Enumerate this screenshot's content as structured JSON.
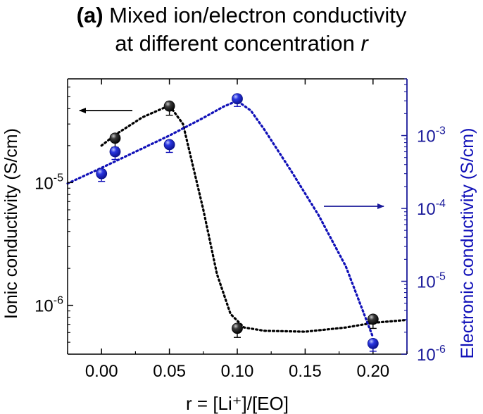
{
  "title": {
    "label": "(a)",
    "line1": "Mixed ion/electron conductivity",
    "line2_prefix": "at different concentration",
    "line2_var": "r"
  },
  "colors": {
    "ionic": "#000000",
    "electronic": "#1010b8",
    "right_axis": "#1a1a9a"
  },
  "chart_data": {
    "type": "scatter",
    "x_title": "r = [Li⁺]/[EO]",
    "y_left_title": "Ionic conductivity (S/cm)",
    "y_right_title": "Electronic conductivity (S/cm)",
    "x_ticks": [
      "0.00",
      "0.05",
      "0.10",
      "0.15",
      "0.20"
    ],
    "x_tick_values": [
      0.0,
      0.05,
      0.1,
      0.15,
      0.2
    ],
    "xlim": [
      -0.025,
      0.225
    ],
    "y_left_scale": "log",
    "y_left_lim": [
      4e-07,
      7e-05
    ],
    "y_left_ticks": [
      {
        "value": 1e-05,
        "base": "10",
        "exp": "-5"
      },
      {
        "value": 1e-06,
        "base": "10",
        "exp": "-6"
      }
    ],
    "y_right_scale": "log",
    "y_right_lim": [
      1e-06,
      0.006
    ],
    "y_right_ticks": [
      {
        "value": 0.001,
        "base": "10",
        "exp": "-3"
      },
      {
        "value": 0.0001,
        "base": "10",
        "exp": "-4"
      },
      {
        "value": 1e-05,
        "base": "10",
        "exp": "-5"
      },
      {
        "value": 1e-06,
        "base": "10",
        "exp": "-6"
      }
    ],
    "series": [
      {
        "axis": "left",
        "points": [
          {
            "x": 0.01,
            "y": 2.3e-05
          },
          {
            "x": 0.05,
            "y": 4.2e-05
          },
          {
            "x": 0.1,
            "y": 6.5e-07
          },
          {
            "x": 0.2,
            "y": 7.7e-07
          }
        ],
        "trend": [
          [
            0.0,
            2e-05
          ],
          [
            0.01,
            2.45e-05
          ],
          [
            0.03,
            3.4e-05
          ],
          [
            0.05,
            4.25e-05
          ],
          [
            0.06,
            3e-05
          ],
          [
            0.075,
            6e-06
          ],
          [
            0.085,
            1.8e-06
          ],
          [
            0.095,
            8.5e-07
          ],
          [
            0.105,
            6.6e-07
          ],
          [
            0.12,
            6.2e-07
          ],
          [
            0.15,
            6.1e-07
          ],
          [
            0.18,
            6.6e-07
          ],
          [
            0.2,
            7.2e-07
          ],
          [
            0.225,
            7.6e-07
          ]
        ]
      },
      {
        "axis": "right",
        "points": [
          {
            "x": 0.0,
            "y": 0.0003
          },
          {
            "x": 0.01,
            "y": 0.0006
          },
          {
            "x": 0.05,
            "y": 0.00075
          },
          {
            "x": 0.1,
            "y": 0.0032
          },
          {
            "x": 0.2,
            "y": 1.4e-06
          }
        ],
        "trend": [
          [
            -0.025,
            0.00022
          ],
          [
            0.0,
            0.00036
          ],
          [
            0.025,
            0.0006
          ],
          [
            0.05,
            0.001
          ],
          [
            0.075,
            0.00175
          ],
          [
            0.09,
            0.0025
          ],
          [
            0.1,
            0.003
          ],
          [
            0.11,
            0.0022
          ],
          [
            0.12,
            0.0012
          ],
          [
            0.14,
            0.00032
          ],
          [
            0.16,
            8e-05
          ],
          [
            0.18,
            1.6e-05
          ],
          [
            0.2,
            1.7e-06
          ]
        ]
      }
    ],
    "annotations": [
      "arrow pointing left toward left axis (ionic)",
      "arrow pointing right toward right axis (electronic)"
    ]
  }
}
